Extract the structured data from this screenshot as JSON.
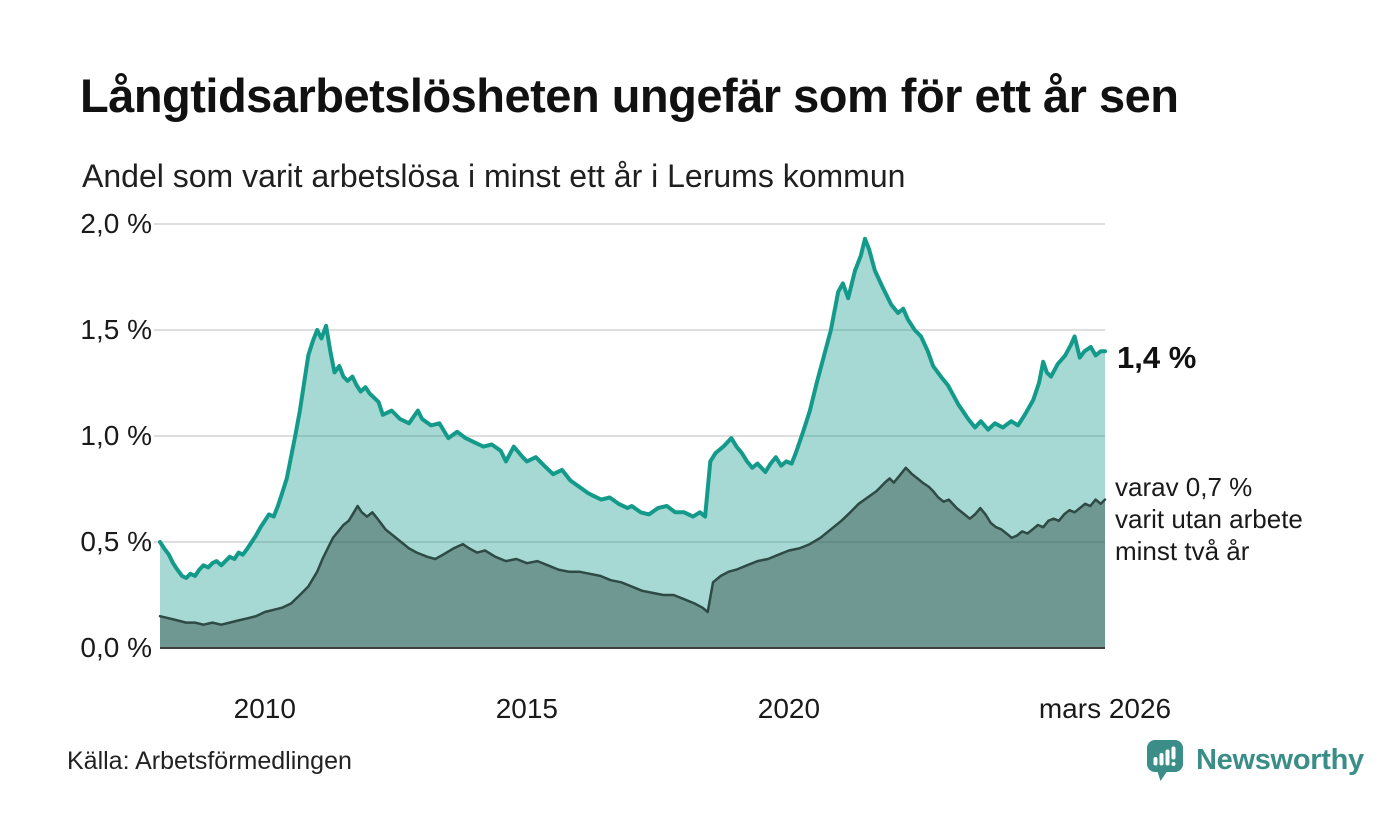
{
  "chart_data": {
    "type": "area",
    "title": "Långtidsarbetslösheten ungefär som för ett år sen",
    "subtitle": "Andel som varit arbetslösa i minst ett år i Lerums kommun",
    "source": "Källa: Arbetsförmedlingen",
    "x_domain": [
      2008,
      2026.03
    ],
    "ylim": [
      0,
      2
    ],
    "grid": true,
    "y_ticks": [
      {
        "v": 0.0,
        "label": "0,0 %"
      },
      {
        "v": 0.5,
        "label": "0,5 %"
      },
      {
        "v": 1.0,
        "label": "1,0 %"
      },
      {
        "v": 1.5,
        "label": "1,5 %"
      },
      {
        "v": 2.0,
        "label": "2,0 %"
      }
    ],
    "x_ticks": [
      {
        "t": 2010,
        "label": "2010"
      },
      {
        "t": 2015,
        "label": "2015"
      },
      {
        "t": 2020,
        "label": "2020"
      },
      {
        "t": 2026.03,
        "label": "mars 2026"
      }
    ],
    "annotations": {
      "latest": "1,4 %",
      "secondary_lines": [
        "varav 0,7 %",
        "varit utan arbete",
        "minst två år"
      ]
    },
    "series": [
      {
        "name": "Andel som varit arbetslösa minst ett år",
        "color": "#149a8b",
        "fill_opacity": 0.38,
        "line_width": 4,
        "points": [
          [
            2008.0,
            0.5
          ],
          [
            2008.08,
            0.47
          ],
          [
            2008.17,
            0.44
          ],
          [
            2008.25,
            0.4
          ],
          [
            2008.33,
            0.37
          ],
          [
            2008.42,
            0.34
          ],
          [
            2008.5,
            0.33
          ],
          [
            2008.58,
            0.35
          ],
          [
            2008.67,
            0.34
          ],
          [
            2008.75,
            0.37
          ],
          [
            2008.83,
            0.39
          ],
          [
            2008.92,
            0.38
          ],
          [
            2009.0,
            0.4
          ],
          [
            2009.08,
            0.41
          ],
          [
            2009.17,
            0.39
          ],
          [
            2009.25,
            0.41
          ],
          [
            2009.33,
            0.43
          ],
          [
            2009.42,
            0.42
          ],
          [
            2009.5,
            0.45
          ],
          [
            2009.58,
            0.44
          ],
          [
            2009.67,
            0.47
          ],
          [
            2009.75,
            0.5
          ],
          [
            2009.83,
            0.53
          ],
          [
            2009.92,
            0.57
          ],
          [
            2010.0,
            0.6
          ],
          [
            2010.08,
            0.63
          ],
          [
            2010.17,
            0.62
          ],
          [
            2010.25,
            0.67
          ],
          [
            2010.33,
            0.73
          ],
          [
            2010.42,
            0.8
          ],
          [
            2010.5,
            0.9
          ],
          [
            2010.58,
            1.0
          ],
          [
            2010.67,
            1.12
          ],
          [
            2010.75,
            1.25
          ],
          [
            2010.83,
            1.38
          ],
          [
            2010.92,
            1.45
          ],
          [
            2011.0,
            1.5
          ],
          [
            2011.08,
            1.46
          ],
          [
            2011.17,
            1.52
          ],
          [
            2011.25,
            1.4
          ],
          [
            2011.33,
            1.3
          ],
          [
            2011.42,
            1.33
          ],
          [
            2011.5,
            1.28
          ],
          [
            2011.58,
            1.26
          ],
          [
            2011.67,
            1.28
          ],
          [
            2011.75,
            1.24
          ],
          [
            2011.83,
            1.21
          ],
          [
            2011.92,
            1.23
          ],
          [
            2012.0,
            1.2
          ],
          [
            2012.17,
            1.16
          ],
          [
            2012.25,
            1.1
          ],
          [
            2012.42,
            1.12
          ],
          [
            2012.58,
            1.08
          ],
          [
            2012.75,
            1.06
          ],
          [
            2012.92,
            1.12
          ],
          [
            2013.0,
            1.08
          ],
          [
            2013.17,
            1.05
          ],
          [
            2013.33,
            1.06
          ],
          [
            2013.5,
            0.99
          ],
          [
            2013.67,
            1.02
          ],
          [
            2013.83,
            0.99
          ],
          [
            2014.0,
            0.97
          ],
          [
            2014.17,
            0.95
          ],
          [
            2014.33,
            0.96
          ],
          [
            2014.5,
            0.93
          ],
          [
            2014.6,
            0.88
          ],
          [
            2014.75,
            0.95
          ],
          [
            2014.92,
            0.9
          ],
          [
            2015.0,
            0.88
          ],
          [
            2015.17,
            0.9
          ],
          [
            2015.33,
            0.86
          ],
          [
            2015.5,
            0.82
          ],
          [
            2015.67,
            0.84
          ],
          [
            2015.83,
            0.79
          ],
          [
            2016.0,
            0.76
          ],
          [
            2016.17,
            0.73
          ],
          [
            2016.25,
            0.72
          ],
          [
            2016.42,
            0.7
          ],
          [
            2016.58,
            0.71
          ],
          [
            2016.75,
            0.68
          ],
          [
            2016.92,
            0.66
          ],
          [
            2017.0,
            0.67
          ],
          [
            2017.17,
            0.64
          ],
          [
            2017.33,
            0.63
          ],
          [
            2017.5,
            0.66
          ],
          [
            2017.67,
            0.67
          ],
          [
            2017.83,
            0.64
          ],
          [
            2018.0,
            0.64
          ],
          [
            2018.17,
            0.62
          ],
          [
            2018.3,
            0.64
          ],
          [
            2018.4,
            0.62
          ],
          [
            2018.5,
            0.88
          ],
          [
            2018.6,
            0.92
          ],
          [
            2018.75,
            0.95
          ],
          [
            2018.9,
            0.99
          ],
          [
            2019.0,
            0.95
          ],
          [
            2019.1,
            0.92
          ],
          [
            2019.2,
            0.88
          ],
          [
            2019.3,
            0.85
          ],
          [
            2019.4,
            0.87
          ],
          [
            2019.55,
            0.83
          ],
          [
            2019.65,
            0.87
          ],
          [
            2019.75,
            0.9
          ],
          [
            2019.85,
            0.86
          ],
          [
            2019.95,
            0.88
          ],
          [
            2020.05,
            0.87
          ],
          [
            2020.13,
            0.92
          ],
          [
            2020.27,
            1.02
          ],
          [
            2020.4,
            1.12
          ],
          [
            2020.53,
            1.25
          ],
          [
            2020.67,
            1.38
          ],
          [
            2020.8,
            1.5
          ],
          [
            2020.94,
            1.68
          ],
          [
            2021.03,
            1.72
          ],
          [
            2021.13,
            1.65
          ],
          [
            2021.26,
            1.78
          ],
          [
            2021.37,
            1.85
          ],
          [
            2021.45,
            1.93
          ],
          [
            2021.53,
            1.88
          ],
          [
            2021.64,
            1.78
          ],
          [
            2021.79,
            1.7
          ],
          [
            2021.95,
            1.62
          ],
          [
            2022.08,
            1.58
          ],
          [
            2022.18,
            1.6
          ],
          [
            2022.27,
            1.55
          ],
          [
            2022.4,
            1.5
          ],
          [
            2022.52,
            1.47
          ],
          [
            2022.65,
            1.4
          ],
          [
            2022.75,
            1.33
          ],
          [
            2022.9,
            1.28
          ],
          [
            2023.03,
            1.24
          ],
          [
            2023.23,
            1.15
          ],
          [
            2023.42,
            1.08
          ],
          [
            2023.55,
            1.04
          ],
          [
            2023.66,
            1.07
          ],
          [
            2023.8,
            1.03
          ],
          [
            2023.93,
            1.06
          ],
          [
            2024.08,
            1.04
          ],
          [
            2024.24,
            1.07
          ],
          [
            2024.37,
            1.05
          ],
          [
            2024.5,
            1.1
          ],
          [
            2024.66,
            1.17
          ],
          [
            2024.77,
            1.25
          ],
          [
            2024.85,
            1.35
          ],
          [
            2024.92,
            1.3
          ],
          [
            2025.0,
            1.28
          ],
          [
            2025.13,
            1.34
          ],
          [
            2025.27,
            1.38
          ],
          [
            2025.38,
            1.43
          ],
          [
            2025.45,
            1.47
          ],
          [
            2025.55,
            1.37
          ],
          [
            2025.64,
            1.4
          ],
          [
            2025.76,
            1.42
          ],
          [
            2025.85,
            1.38
          ],
          [
            2025.95,
            1.4
          ],
          [
            2026.03,
            1.4
          ]
        ]
      },
      {
        "name": "varav utan arbete minst två år",
        "color": "#2e4a45",
        "fill_opacity": 0.45,
        "line_width": 2.5,
        "points": [
          [
            2008.0,
            0.15
          ],
          [
            2008.17,
            0.14
          ],
          [
            2008.33,
            0.13
          ],
          [
            2008.5,
            0.12
          ],
          [
            2008.67,
            0.12
          ],
          [
            2008.83,
            0.11
          ],
          [
            2009.0,
            0.12
          ],
          [
            2009.17,
            0.11
          ],
          [
            2009.33,
            0.12
          ],
          [
            2009.5,
            0.13
          ],
          [
            2009.67,
            0.14
          ],
          [
            2009.83,
            0.15
          ],
          [
            2010.0,
            0.17
          ],
          [
            2010.17,
            0.18
          ],
          [
            2010.33,
            0.19
          ],
          [
            2010.5,
            0.21
          ],
          [
            2010.67,
            0.25
          ],
          [
            2010.83,
            0.29
          ],
          [
            2011.0,
            0.36
          ],
          [
            2011.1,
            0.42
          ],
          [
            2011.2,
            0.47
          ],
          [
            2011.3,
            0.52
          ],
          [
            2011.4,
            0.55
          ],
          [
            2011.5,
            0.58
          ],
          [
            2011.6,
            0.6
          ],
          [
            2011.7,
            0.64
          ],
          [
            2011.77,
            0.67
          ],
          [
            2011.85,
            0.64
          ],
          [
            2011.95,
            0.62
          ],
          [
            2012.05,
            0.64
          ],
          [
            2012.15,
            0.61
          ],
          [
            2012.3,
            0.56
          ],
          [
            2012.45,
            0.53
          ],
          [
            2012.6,
            0.5
          ],
          [
            2012.75,
            0.47
          ],
          [
            2012.9,
            0.45
          ],
          [
            2013.1,
            0.43
          ],
          [
            2013.25,
            0.42
          ],
          [
            2013.4,
            0.44
          ],
          [
            2013.6,
            0.47
          ],
          [
            2013.78,
            0.49
          ],
          [
            2013.9,
            0.47
          ],
          [
            2014.05,
            0.45
          ],
          [
            2014.2,
            0.46
          ],
          [
            2014.4,
            0.43
          ],
          [
            2014.6,
            0.41
          ],
          [
            2014.8,
            0.42
          ],
          [
            2015.0,
            0.4
          ],
          [
            2015.2,
            0.41
          ],
          [
            2015.4,
            0.39
          ],
          [
            2015.6,
            0.37
          ],
          [
            2015.8,
            0.36
          ],
          [
            2016.0,
            0.36
          ],
          [
            2016.2,
            0.35
          ],
          [
            2016.4,
            0.34
          ],
          [
            2016.6,
            0.32
          ],
          [
            2016.8,
            0.31
          ],
          [
            2017.0,
            0.29
          ],
          [
            2017.2,
            0.27
          ],
          [
            2017.4,
            0.26
          ],
          [
            2017.6,
            0.25
          ],
          [
            2017.8,
            0.25
          ],
          [
            2018.0,
            0.23
          ],
          [
            2018.2,
            0.21
          ],
          [
            2018.35,
            0.19
          ],
          [
            2018.45,
            0.17
          ],
          [
            2018.55,
            0.31
          ],
          [
            2018.7,
            0.34
          ],
          [
            2018.85,
            0.36
          ],
          [
            2019.0,
            0.37
          ],
          [
            2019.2,
            0.39
          ],
          [
            2019.4,
            0.41
          ],
          [
            2019.6,
            0.42
          ],
          [
            2019.8,
            0.44
          ],
          [
            2020.0,
            0.46
          ],
          [
            2020.2,
            0.47
          ],
          [
            2020.4,
            0.49
          ],
          [
            2020.6,
            0.52
          ],
          [
            2020.8,
            0.56
          ],
          [
            2021.0,
            0.6
          ],
          [
            2021.17,
            0.64
          ],
          [
            2021.33,
            0.68
          ],
          [
            2021.5,
            0.71
          ],
          [
            2021.67,
            0.74
          ],
          [
            2021.83,
            0.78
          ],
          [
            2021.92,
            0.8
          ],
          [
            2022.0,
            0.78
          ],
          [
            2022.1,
            0.81
          ],
          [
            2022.23,
            0.85
          ],
          [
            2022.35,
            0.82
          ],
          [
            2022.45,
            0.8
          ],
          [
            2022.55,
            0.78
          ],
          [
            2022.67,
            0.76
          ],
          [
            2022.75,
            0.74
          ],
          [
            2022.85,
            0.71
          ],
          [
            2022.95,
            0.69
          ],
          [
            2023.05,
            0.7
          ],
          [
            2023.2,
            0.66
          ],
          [
            2023.35,
            0.63
          ],
          [
            2023.45,
            0.61
          ],
          [
            2023.55,
            0.63
          ],
          [
            2023.65,
            0.66
          ],
          [
            2023.75,
            0.63
          ],
          [
            2023.85,
            0.59
          ],
          [
            2023.95,
            0.57
          ],
          [
            2024.05,
            0.56
          ],
          [
            2024.15,
            0.54
          ],
          [
            2024.25,
            0.52
          ],
          [
            2024.35,
            0.53
          ],
          [
            2024.45,
            0.55
          ],
          [
            2024.55,
            0.54
          ],
          [
            2024.65,
            0.56
          ],
          [
            2024.75,
            0.58
          ],
          [
            2024.85,
            0.57
          ],
          [
            2024.95,
            0.6
          ],
          [
            2025.05,
            0.61
          ],
          [
            2025.15,
            0.6
          ],
          [
            2025.25,
            0.63
          ],
          [
            2025.35,
            0.65
          ],
          [
            2025.45,
            0.64
          ],
          [
            2025.55,
            0.66
          ],
          [
            2025.65,
            0.68
          ],
          [
            2025.75,
            0.67
          ],
          [
            2025.85,
            0.7
          ],
          [
            2025.95,
            0.68
          ],
          [
            2026.03,
            0.7
          ]
        ]
      }
    ]
  },
  "branding": {
    "name": "Newsworthy"
  },
  "colors": {
    "accent": "#149a8b",
    "accent_dark": "#2e4a45",
    "grid": "#dedede",
    "axis": "#3f3f3f",
    "text": "#1a1a1a",
    "brand": "#3a8e87"
  }
}
